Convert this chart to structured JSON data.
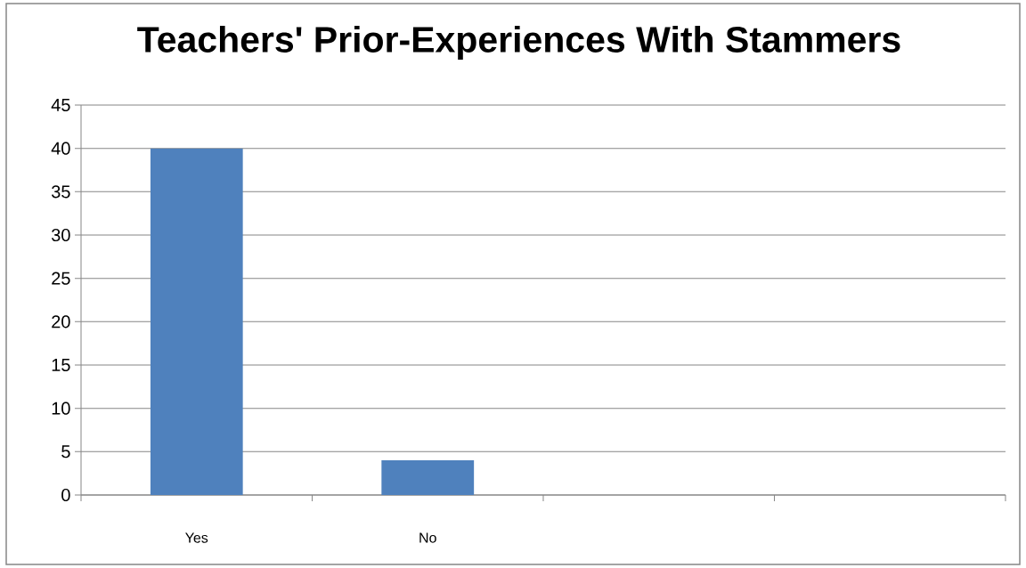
{
  "chart_data": {
    "type": "bar",
    "title": "Teachers' Prior-Experiences With Stammers",
    "categories": [
      "Yes",
      "No",
      null,
      null
    ],
    "values": [
      40,
      4,
      null,
      null
    ],
    "color": "#4f81bd",
    "ylim": [
      0,
      45
    ],
    "yticks": [
      0,
      5,
      10,
      15,
      20,
      25,
      30,
      35,
      40,
      45
    ],
    "grid": "y"
  }
}
